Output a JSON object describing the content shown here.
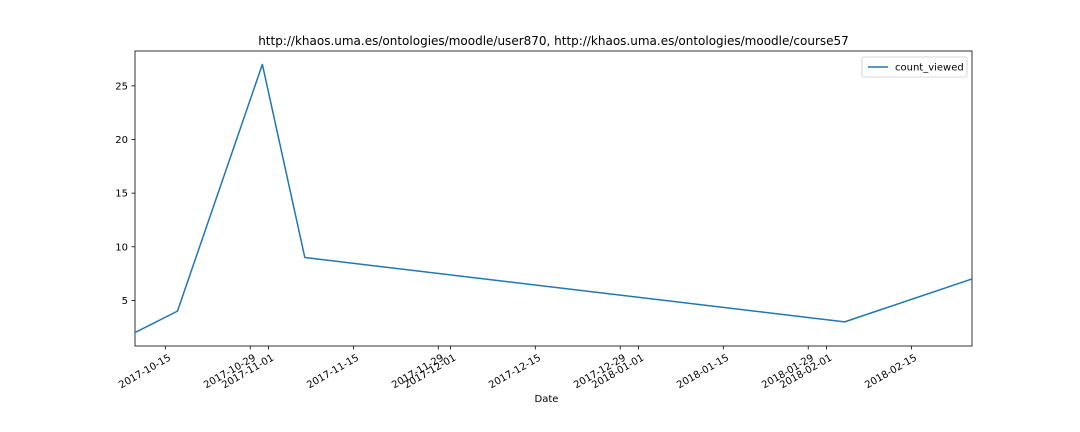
{
  "chart_data": {
    "type": "line",
    "title": "http://khaos.uma.es/ontologies/moodle/user870, http://khaos.uma.es/ontologies/moodle/course57",
    "xlabel": "Date",
    "ylabel": "",
    "x_ticks": [
      "2017-10-15",
      "2017-10-29",
      "2017-11-01",
      "2017-11-15",
      "2017-11-29",
      "2017-12-01",
      "2017-12-15",
      "2017-12-29",
      "2018-01-01",
      "2018-01-15",
      "2018-01-29",
      "2018-02-01",
      "2018-02-15"
    ],
    "y_ticks": [
      5,
      10,
      15,
      20,
      25
    ],
    "ylim": [
      0.75,
      28.25
    ],
    "xlim": [
      "2017-10-10",
      "2018-02-25"
    ],
    "grid": false,
    "legend_position": "top-right",
    "series": [
      {
        "name": "count_viewed",
        "color": "#1f77b4",
        "x": [
          "2017-10-10",
          "2017-10-17",
          "2017-10-31",
          "2017-11-07",
          "2018-02-04",
          "2018-02-25"
        ],
        "y": [
          2,
          4,
          27,
          9,
          3,
          7
        ]
      }
    ]
  }
}
